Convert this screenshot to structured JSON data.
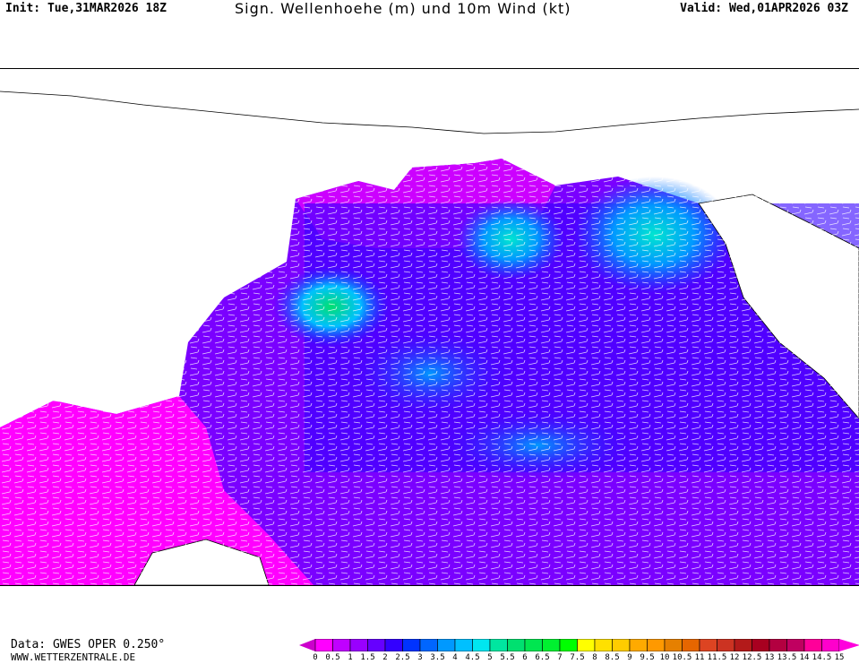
{
  "header": {
    "init": "Init: Tue,31MAR2026 18Z",
    "title": "Sign. Wellenhoehe (m) und 10m Wind (kt)",
    "valid": "Valid: Wed,01APR2026 03Z"
  },
  "footer": {
    "data_source": "Data: GWES OPER 0.250°",
    "website": "WWW.WETTERZENTRALE.DE"
  },
  "map": {
    "region": "North Pacific",
    "land_color": "#ffffff",
    "wind_barb_color": "#ffffff"
  },
  "colorbar": {
    "unit": "m",
    "labels": [
      "0",
      "0.5",
      "1",
      "1.5",
      "2",
      "2.5",
      "3",
      "3.5",
      "4",
      "4.5",
      "5",
      "5.5",
      "6",
      "6.5",
      "7",
      "7.5",
      "8",
      "8.5",
      "9",
      "9.5",
      "10",
      "10.5",
      "11",
      "11.5",
      "12",
      "12.5",
      "13",
      "13.5",
      "14",
      "14.5",
      "15"
    ],
    "colors": [
      "#ff00ff",
      "#c000ff",
      "#9900ff",
      "#6600ff",
      "#3300ff",
      "#0033ff",
      "#0066ff",
      "#0099ff",
      "#00c0ff",
      "#00e6f0",
      "#00e6a0",
      "#00e070",
      "#00e650",
      "#00f030",
      "#00ff00",
      "#ffff00",
      "#ffe000",
      "#ffcc00",
      "#ffaa00",
      "#ff9900",
      "#e68000",
      "#e66600",
      "#dd4422",
      "#cc3322",
      "#b31a1a",
      "#a80020",
      "#b30040",
      "#c00060",
      "#ff0099",
      "#ff00cc"
    ],
    "under_color": "#cc00cc",
    "over_color": "#ff00dd"
  }
}
